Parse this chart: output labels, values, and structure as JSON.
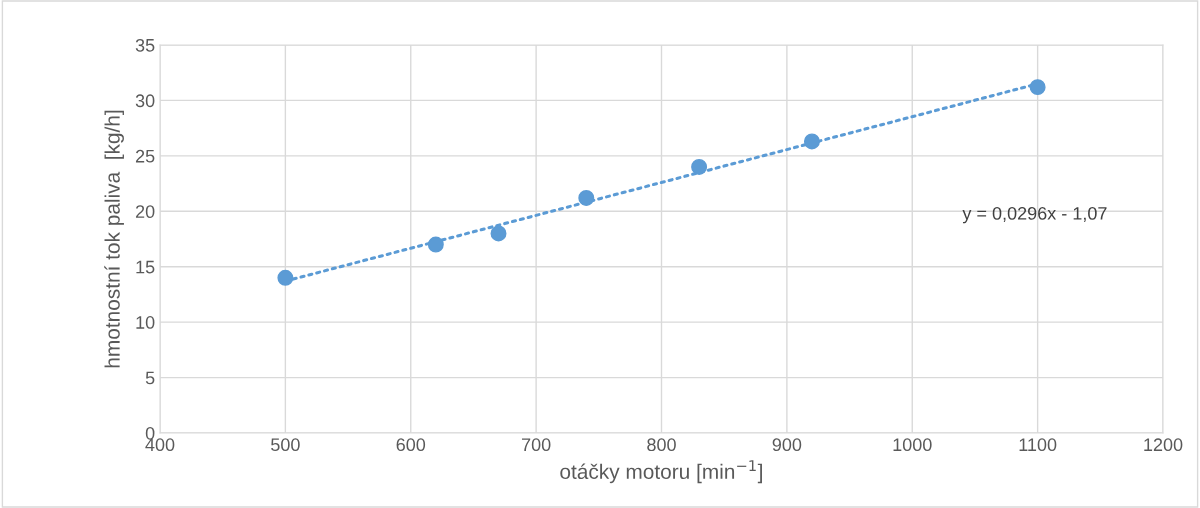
{
  "chart_data": {
    "type": "scatter",
    "xlabel": "otáčky motoru [min$^{−1}$]",
    "ylabel": "hmotnostní tok paliva  [kg/h]",
    "x": [
      500,
      620,
      670,
      740,
      830,
      920,
      1100
    ],
    "series": [
      {
        "color": "#5b9bd5",
        "marker": "circle",
        "values": [
          14,
          17,
          18,
          21.2,
          24,
          26.3,
          31.2
        ]
      },
      {
        "type": "line",
        "color": "#5b9bd5",
        "line_style": "dotted",
        "x": [
          500,
          1100
        ],
        "values": [
          13.7,
          31.5
        ]
      }
    ],
    "annotations": [
      "y = 0,0296x - 1,07"
    ],
    "xlim": [
      400,
      1200
    ],
    "xticks": [
      400,
      500,
      600,
      700,
      800,
      900,
      1000,
      1100,
      1200
    ],
    "ylim": [
      0,
      35
    ],
    "yticks": [
      0,
      5,
      10,
      15,
      20,
      25,
      30,
      35
    ],
    "grid": true
  }
}
